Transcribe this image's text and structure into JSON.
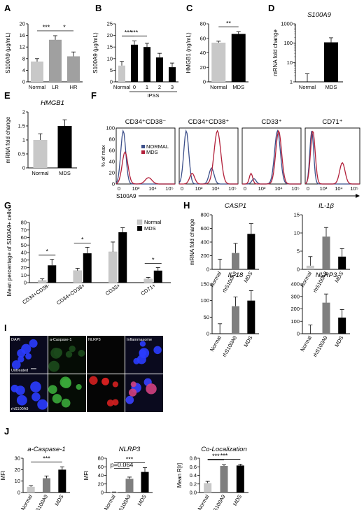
{
  "panels": {
    "A": {
      "label": "A"
    },
    "B": {
      "label": "B"
    },
    "C": {
      "label": "C"
    },
    "D": {
      "label": "D"
    },
    "E": {
      "label": "E"
    },
    "F": {
      "label": "F"
    },
    "G": {
      "label": "G"
    },
    "H": {
      "label": "H"
    },
    "I": {
      "label": "I"
    },
    "J": {
      "label": "J"
    }
  },
  "micrograph": {
    "columns": [
      "DAPI",
      "a-Caspase-1",
      "NLRP3",
      "Inflammasome"
    ],
    "rows": [
      "Untreated",
      "rhS100A9"
    ]
  },
  "flow": {
    "ylabel": "% of max",
    "xlabel": "S100A9",
    "legend": [
      "NORMAL",
      "MDS"
    ],
    "titles": [
      "CD34⁺CD38⁻",
      "CD34⁺CD38⁺",
      "CD33⁺",
      "CD71⁺"
    ],
    "xticks": [
      "0",
      "10³",
      "10⁴",
      "10⁵"
    ],
    "yticks": [
      "0",
      "20",
      "40",
      "60",
      "80",
      "100"
    ],
    "colors": {
      "normal": "#3c4f8a",
      "mds": "#b2203a"
    }
  },
  "chart_data": [
    {
      "panel": "A",
      "type": "bar",
      "categories": [
        "Normal",
        "LR",
        "HR"
      ],
      "values": [
        7,
        14.5,
        8.8
      ],
      "errors": [
        1,
        1.4,
        1.5
      ],
      "colors": [
        "#c8c8c8",
        "#a0a0a0",
        "#a0a0a0"
      ],
      "ylabel": "S100A9 (µg/mL)",
      "ylim": [
        0,
        20
      ],
      "yticks": [
        "0",
        "4",
        "8",
        "12",
        "16",
        "20"
      ],
      "sig": [
        {
          "from": 0,
          "to": 1,
          "text": "***"
        },
        {
          "from": 1,
          "to": 2,
          "text": "*"
        }
      ]
    },
    {
      "panel": "B",
      "type": "bar",
      "categories": [
        "Normal",
        "0",
        "1",
        "2",
        "3"
      ],
      "values": [
        7,
        16,
        15,
        10.5,
        6.3
      ],
      "errors": [
        1.8,
        1.6,
        1.6,
        1.8,
        1.8
      ],
      "colors": [
        "#c8c8c8",
        "#000000",
        "#000000",
        "#000000",
        "#000000"
      ],
      "ylabel": "S100A9 (µg/mL)",
      "xlabel": "IPSS",
      "ylim": [
        0,
        25
      ],
      "yticks": [
        "0",
        "5",
        "10",
        "15",
        "20",
        "25"
      ],
      "sig": [
        {
          "from": 0,
          "to": 1,
          "text": "***"
        },
        {
          "from": 0,
          "to": 2,
          "text": "***"
        }
      ]
    },
    {
      "panel": "C",
      "type": "bar",
      "categories": [
        "Normal",
        "MDS"
      ],
      "values": [
        54,
        66
      ],
      "errors": [
        2,
        3
      ],
      "colors": [
        "#c8c8c8",
        "#000000"
      ],
      "ylabel": "HMGB1 (ng/mL)",
      "ylim": [
        0,
        80
      ],
      "yticks": [
        "0",
        "20",
        "40",
        "60",
        "80"
      ],
      "sig": [
        {
          "from": 0,
          "to": 1,
          "text": "**"
        }
      ]
    },
    {
      "panel": "D",
      "type": "bar",
      "title": "S100A9",
      "categories": [
        "Normal",
        "MDS"
      ],
      "values": [
        1,
        110
      ],
      "errors": [
        1.6,
        80
      ],
      "colors": [
        "#c8c8c8",
        "#000000"
      ],
      "ylabel": "mRNA fold change",
      "scale": "log",
      "ylim": [
        1,
        1000
      ],
      "yticks": [
        "1",
        "10",
        "100",
        "1000"
      ]
    },
    {
      "panel": "E",
      "type": "bar",
      "title": "HMGB1",
      "categories": [
        "Normal",
        "MDS"
      ],
      "values": [
        1.0,
        1.5
      ],
      "errors": [
        0.22,
        0.22
      ],
      "colors": [
        "#c8c8c8",
        "#000000"
      ],
      "ylabel": "mRNA fold change",
      "ylim": [
        0,
        2
      ],
      "yticks": [
        "0",
        "0.5",
        "1",
        "1.5",
        "2"
      ]
    },
    {
      "panel": "G",
      "type": "bar",
      "categories": [
        "CD34+CD38-",
        "CD34+CD38+",
        "CD33+",
        "CD71+"
      ],
      "series": [
        {
          "name": "Normal",
          "values": [
            3,
            16,
            41,
            5
          ],
          "errors": [
            2,
            3,
            13,
            2
          ],
          "color": "#c8c8c8"
        },
        {
          "name": "MDS",
          "values": [
            23,
            39,
            67,
            16
          ],
          "errors": [
            8,
            8,
            6,
            4
          ],
          "color": "#000000"
        }
      ],
      "ylabel": "Mean percentage of S100A9+ cells",
      "ylim": [
        0,
        80
      ],
      "yticks": [
        "0",
        "10",
        "20",
        "30",
        "40",
        "50",
        "60",
        "70",
        "80"
      ],
      "sig": [
        {
          "group": 0,
          "text": "*"
        },
        {
          "group": 1,
          "text": "*"
        },
        {
          "group": 3,
          "text": "*"
        }
      ]
    },
    {
      "panel": "H1",
      "type": "bar",
      "title": "CASP1",
      "categories": [
        "Normal",
        "rhS100A9",
        "MDS"
      ],
      "values": [
        0,
        240,
        520
      ],
      "errors": [
        150,
        140,
        150
      ],
      "colors": [
        "#c8c8c8",
        "#7f7f7f",
        "#000000"
      ],
      "ylabel": "mRNA fold change",
      "ylim": [
        0,
        800
      ],
      "yticks": [
        "0",
        "200",
        "400",
        "600",
        "800"
      ]
    },
    {
      "panel": "H2",
      "type": "bar",
      "title": "IL-1β",
      "categories": [
        "Normal",
        "rhS100A9",
        "MDS"
      ],
      "values": [
        1,
        9,
        3.5
      ],
      "errors": [
        2.5,
        2.5,
        2.2
      ],
      "colors": [
        "#c8c8c8",
        "#7f7f7f",
        "#000000"
      ],
      "ylim": [
        0,
        15
      ],
      "yticks": [
        "0",
        "5",
        "10",
        "15"
      ]
    },
    {
      "panel": "H3",
      "type": "bar",
      "title": "IL-18",
      "categories": [
        "Normal",
        "rhS100A9",
        "MDS"
      ],
      "values": [
        0,
        83,
        100
      ],
      "errors": [
        30,
        28,
        30
      ],
      "colors": [
        "#c8c8c8",
        "#7f7f7f",
        "#000000"
      ],
      "ylim": [
        0,
        150
      ],
      "yticks": [
        "0",
        "50",
        "100",
        "150"
      ]
    },
    {
      "panel": "H4",
      "type": "bar",
      "title": "NLRP3",
      "categories": [
        "Normal",
        "rhS100A9",
        "MDS"
      ],
      "values": [
        0,
        250,
        130
      ],
      "errors": [
        70,
        70,
        65
      ],
      "colors": [
        "#c8c8c8",
        "#7f7f7f",
        "#000000"
      ],
      "ylim": [
        0,
        400
      ],
      "yticks": [
        "0",
        "100",
        "200",
        "300",
        "400"
      ]
    },
    {
      "panel": "J1",
      "type": "bar",
      "title": "a-Caspase-1",
      "categories": [
        "Normal",
        "rhS100A9",
        "MDS"
      ],
      "values": [
        5,
        12.5,
        20
      ],
      "errors": [
        1,
        2,
        2.5
      ],
      "colors": [
        "#c8c8c8",
        "#7f7f7f",
        "#000000"
      ],
      "ylabel": "MFI",
      "ylim": [
        0,
        30
      ],
      "yticks": [
        "0",
        "10",
        "20",
        "30"
      ],
      "sig": [
        {
          "from": 0,
          "to": 2,
          "text": "***"
        }
      ]
    },
    {
      "panel": "J2",
      "type": "bar",
      "title": "NLRP3",
      "categories": [
        "Normal",
        "rhS100A9",
        "MDS"
      ],
      "values": [
        0.8,
        32,
        48
      ],
      "errors": [
        0.5,
        4,
        10
      ],
      "colors": [
        "#c8c8c8",
        "#7f7f7f",
        "#000000"
      ],
      "ylabel": "MFI",
      "ylim": [
        0,
        80
      ],
      "yticks": [
        "0",
        "20",
        "40",
        "60",
        "80"
      ],
      "sig": [
        {
          "from": 0,
          "to": 2,
          "text": "***"
        },
        {
          "from": 0,
          "to": 1,
          "text": "p=0.064"
        }
      ]
    },
    {
      "panel": "J3",
      "type": "bar",
      "title": "Co-Localization",
      "categories": [
        "Normal",
        "rhS100A9",
        "MDS"
      ],
      "values": [
        0.22,
        0.62,
        0.63
      ],
      "errors": [
        0.04,
        0.03,
        0.03
      ],
      "colors": [
        "#c8c8c8",
        "#7f7f7f",
        "#000000"
      ],
      "ylabel": "Mean R[r]",
      "ylim": [
        0,
        0.8
      ],
      "yticks": [
        "0.0",
        "0.2",
        "0.4",
        "0.6",
        "0.8"
      ],
      "sig": [
        {
          "from": 0,
          "to": 2,
          "text": "***"
        },
        {
          "from": 0,
          "to": 1,
          "text": "***"
        }
      ]
    }
  ]
}
